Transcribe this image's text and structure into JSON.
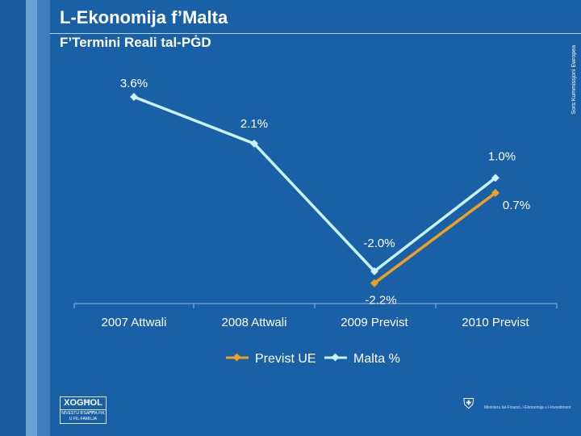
{
  "header": {
    "title": "L-Ekonomija f’Malta",
    "subtitle": "F’Termini Reali tal-PĠD",
    "source": "Sors:Kummissjoni Ewropea"
  },
  "footer": {
    "logo_top": "XOGĦOL",
    "logo_bottom": "NIVESTU B'SAĦĦA FIK U FIL-FAMILJA",
    "ministry": "Ministeru tal-Finanzi, l-Ekonomija u l-Investiment"
  },
  "colors": {
    "background": "#1a60a6",
    "malta": "#c8f3f8",
    "eu": "#f0a020"
  },
  "chart_data": {
    "type": "line",
    "title": "F’Termini Reali tal-PĠD",
    "categories": [
      "2007 Attwali",
      "2008 Attwali",
      "2009 Previst",
      "2010 Previst"
    ],
    "series": [
      {
        "name": "Previst UE",
        "values": [
          null,
          null,
          -2.2,
          0.7
        ],
        "labels": [
          "",
          "",
          "-2.2%",
          "0.7%"
        ]
      },
      {
        "name": "Malta %",
        "values": [
          3.6,
          2.1,
          -2.0,
          1.0
        ],
        "labels": [
          "3.6%",
          "2.1%",
          "-2.0%",
          "1.0%"
        ]
      }
    ],
    "ylim": [
      -3.0,
      4.5
    ],
    "legend": "bottom"
  }
}
